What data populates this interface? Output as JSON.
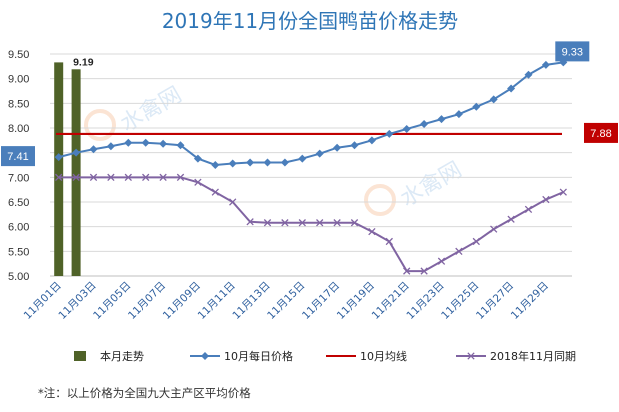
{
  "chart_data": {
    "type": "line",
    "title": "2019年11月份全国鸭苗价格走势",
    "xlabel": "",
    "ylabel": "",
    "ylim": [
      5.0,
      9.5
    ],
    "yticks": [
      "9.50",
      "9.00",
      "8.50",
      "8.00",
      "7.50",
      "7.00",
      "6.50",
      "6.00",
      "5.50",
      "5.00"
    ],
    "categories": [
      "11月01日",
      "11月02日",
      "11月03日",
      "11月04日",
      "11月05日",
      "11月06日",
      "11月07日",
      "11月08日",
      "11月09日",
      "11月10日",
      "11月11日",
      "11月12日",
      "11月13日",
      "11月14日",
      "11月15日",
      "11月16日",
      "11月17日",
      "11月18日",
      "11月19日",
      "11月20日",
      "11月21日",
      "11月22日",
      "11月23日",
      "11月24日",
      "11月25日",
      "11月26日",
      "11月27日",
      "11月28日",
      "11月29日",
      "11月30日"
    ],
    "xtick_labels": [
      "11月01日",
      "11月03日",
      "11月05日",
      "11月07日",
      "11月09日",
      "11月11日",
      "11月13日",
      "11月15日",
      "11月17日",
      "11月19日",
      "11月21日",
      "11月23日",
      "11月25日",
      "11月27日",
      "11月29日"
    ],
    "series": [
      {
        "name": "本月走势",
        "kind": "bar",
        "color": "#4f6228",
        "values": [
          9.33,
          9.19,
          null,
          null,
          null,
          null,
          null,
          null,
          null,
          null,
          null,
          null,
          null,
          null,
          null,
          null,
          null,
          null,
          null,
          null,
          null,
          null,
          null,
          null,
          null,
          null,
          null,
          null,
          null,
          null
        ],
        "data_labels": [
          null,
          "9.19"
        ]
      },
      {
        "name": "10月每日价格",
        "kind": "line",
        "color": "#4a7ebb",
        "marker": "diamond",
        "values": [
          7.41,
          7.5,
          7.57,
          7.63,
          7.7,
          7.7,
          7.68,
          7.65,
          7.38,
          7.25,
          7.28,
          7.3,
          7.3,
          7.3,
          7.38,
          7.48,
          7.6,
          7.65,
          7.75,
          7.88,
          7.98,
          8.08,
          8.18,
          8.28,
          8.43,
          8.58,
          8.8,
          9.08,
          9.28,
          9.33
        ]
      },
      {
        "name": "10月均线",
        "kind": "line",
        "color": "#c00000",
        "values": [
          7.88,
          7.88,
          7.88,
          7.88,
          7.88,
          7.88,
          7.88,
          7.88,
          7.88,
          7.88,
          7.88,
          7.88,
          7.88,
          7.88,
          7.88,
          7.88,
          7.88,
          7.88,
          7.88,
          7.88,
          7.88,
          7.88,
          7.88,
          7.88,
          7.88,
          7.88,
          7.88,
          7.88,
          7.88,
          7.88
        ]
      },
      {
        "name": "2018年11月同期",
        "kind": "line",
        "color": "#8064a2",
        "marker": "x",
        "values": [
          7.0,
          7.0,
          7.0,
          7.0,
          7.0,
          7.0,
          7.0,
          7.0,
          6.9,
          6.7,
          6.5,
          6.1,
          6.08,
          6.08,
          6.08,
          6.08,
          6.08,
          6.08,
          5.9,
          5.7,
          5.1,
          5.1,
          5.3,
          5.5,
          5.7,
          5.95,
          6.15,
          6.35,
          6.55,
          6.7
        ]
      }
    ],
    "callouts": [
      {
        "text": "7.41",
        "series": "10月每日价格",
        "index": 0,
        "bg": "#4a7ebb"
      },
      {
        "text": "9.33",
        "series": "10月每日价格",
        "index": 29,
        "bg": "#4a7ebb"
      },
      {
        "text": "7.88",
        "series": "10月均线",
        "index": 29,
        "bg": "#c00000"
      }
    ],
    "grid": true,
    "legend_position": "bottom"
  },
  "note": "*注：以上价格为全国九大主产区平均价格",
  "watermark": "水禽网"
}
